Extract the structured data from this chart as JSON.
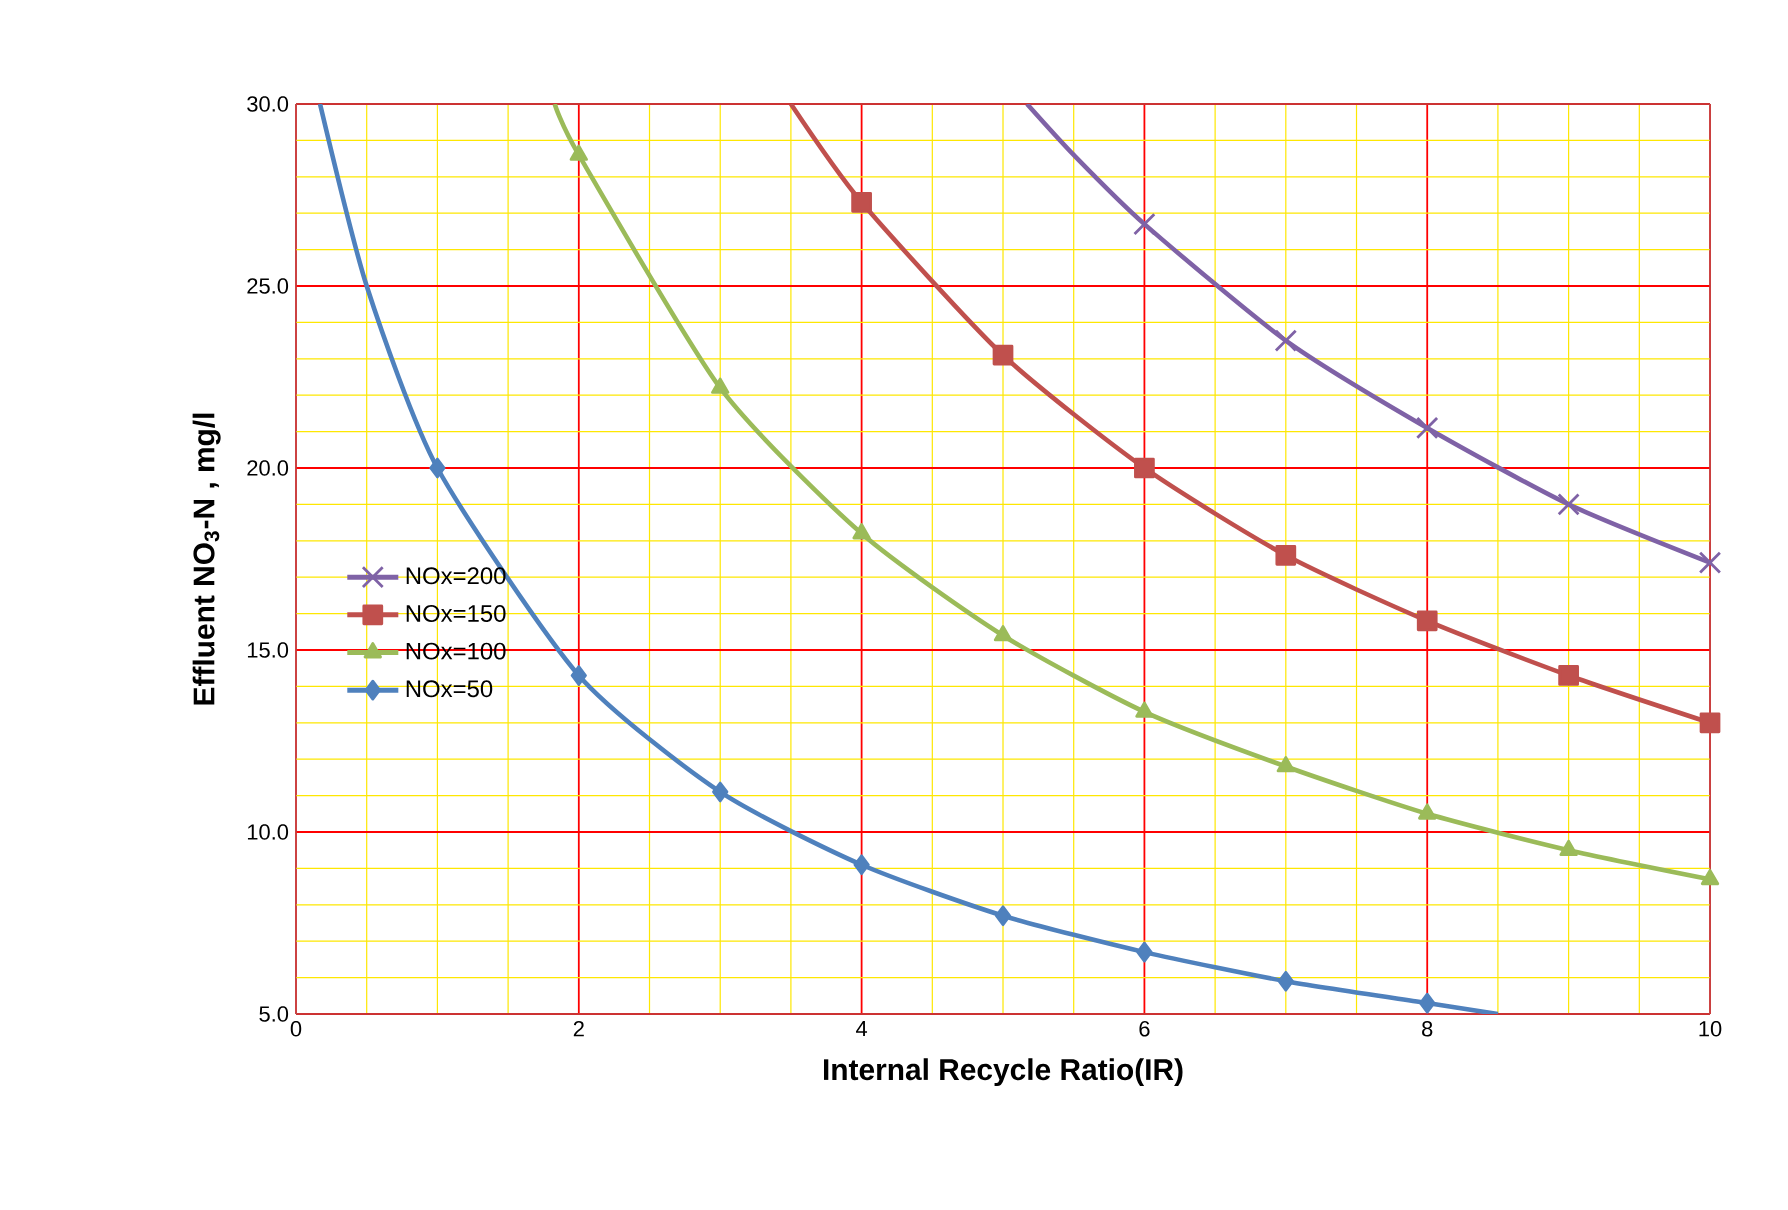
{
  "chart_data": {
    "type": "line",
    "xlabel": "Internal Recycle Ratio(IR)",
    "ylabel": "Effluent NO$_{3}$-N , mg/l",
    "xlim": [
      0,
      10
    ],
    "ylim": [
      5,
      30
    ],
    "xticks": [
      0,
      {
        "value": 0.5,
        "label": null
      },
      {
        "value": 1,
        "label": null
      },
      {
        "value": 1.5,
        "label": null
      },
      2,
      {
        "value": 2.5,
        "label": null
      },
      {
        "value": 3,
        "label": null
      },
      {
        "value": 3.5,
        "label": null
      },
      4,
      {
        "value": 4.5,
        "label": null
      },
      {
        "value": 5,
        "label": null
      },
      {
        "value": 5.5,
        "label": null
      },
      6,
      {
        "value": 6.5,
        "label": null
      },
      {
        "value": 7,
        "label": null
      },
      {
        "value": 7.5,
        "label": null
      },
      8,
      {
        "value": 8.5,
        "label": null
      },
      {
        "value": 9,
        "label": null
      },
      {
        "value": 9.5,
        "label": null
      },
      10
    ],
    "yticks": [
      {
        "value": 5,
        "label": "5.0"
      },
      {
        "value": 6,
        "label": null
      },
      {
        "value": 7,
        "label": null
      },
      {
        "value": 8,
        "label": null
      },
      {
        "value": 9,
        "label": null
      },
      {
        "value": 10,
        "label": "10.0"
      },
      {
        "value": 11,
        "label": null
      },
      {
        "value": 12,
        "label": null
      },
      {
        "value": 13,
        "label": null
      },
      {
        "value": 14,
        "label": null
      },
      {
        "value": 15,
        "label": "15.0"
      },
      {
        "value": 16,
        "label": null
      },
      {
        "value": 17,
        "label": null
      },
      {
        "value": 18,
        "label": null
      },
      {
        "value": 19,
        "label": null
      },
      {
        "value": 20,
        "label": "20.0"
      },
      {
        "value": 21,
        "label": null
      },
      {
        "value": 22,
        "label": null
      },
      {
        "value": 23,
        "label": null
      },
      {
        "value": 24,
        "label": null
      },
      {
        "value": 25,
        "label": "25.0"
      },
      {
        "value": 26,
        "label": null
      },
      {
        "value": 27,
        "label": null
      },
      {
        "value": 28,
        "label": null
      },
      {
        "value": 29,
        "label": null
      },
      {
        "value": 30,
        "label": "30.0"
      }
    ],
    "grid": true,
    "legend": "left",
    "series": [
      {
        "name": "NOx=200",
        "color": "#7f62a6",
        "marker": "cross",
        "x": [
          5.17,
          5.5,
          6,
          7,
          8,
          9,
          10
        ],
        "values": [
          30,
          28.6,
          26.7,
          23.5,
          21.1,
          19.0,
          17.4
        ]
      },
      {
        "name": "NOx=150",
        "color": "#c0504d",
        "marker": "square",
        "x": [
          3.5,
          4,
          5,
          6,
          7,
          8,
          9,
          10
        ],
        "values": [
          30,
          27.3,
          23.1,
          20.0,
          17.6,
          15.8,
          14.3,
          13.0
        ]
      },
      {
        "name": "NOx=100",
        "color": "#9bbb59",
        "marker": "triangle",
        "x": [
          1.83,
          2,
          3,
          4,
          5,
          6,
          7,
          8,
          9,
          10
        ],
        "values": [
          30,
          28.6,
          22.2,
          18.2,
          15.4,
          13.3,
          11.8,
          10.5,
          9.5,
          8.7
        ]
      },
      {
        "name": "NOx=50",
        "color": "#4f81bd",
        "marker": "diamond",
        "x": [
          0.17,
          0.5,
          1,
          2,
          3,
          4,
          5,
          6,
          7,
          8,
          8.5
        ],
        "values": [
          30,
          25,
          20.0,
          14.3,
          11.1,
          9.1,
          7.7,
          6.7,
          5.9,
          5.3,
          5.0
        ]
      }
    ]
  }
}
